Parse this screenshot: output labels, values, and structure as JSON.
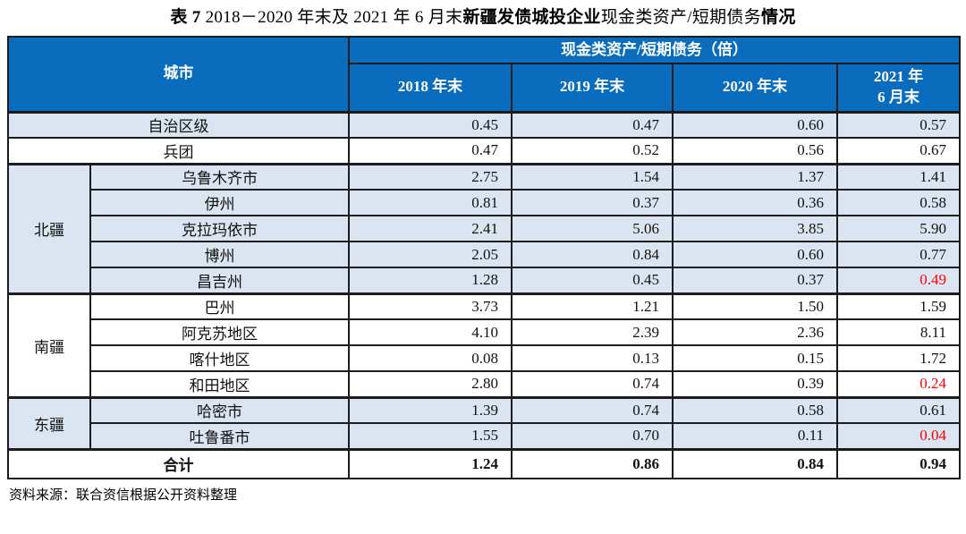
{
  "title": {
    "seg_table_no": "表 7 ",
    "seg_period": "2018－2020 年末及 2021 年 6 月末",
    "seg_subject_bold": "新疆发债城投企业",
    "seg_metric": "现金类资产/短期债务",
    "seg_suffix_bold": "情况"
  },
  "table": {
    "header": {
      "city_label": "城市",
      "metric_group_label": "现金类资产/短期债务（倍）",
      "columns": [
        "2018 年末",
        "2019 年末",
        "2020 年末",
        "2021 年\n6 月末"
      ]
    },
    "rows": [
      {
        "region": "",
        "city": "自治区级",
        "values": [
          "0.45",
          "0.47",
          "0.60",
          "0.57"
        ]
      },
      {
        "region": "",
        "city": "兵团",
        "values": [
          "0.47",
          "0.52",
          "0.56",
          "0.67"
        ]
      },
      {
        "region": "北疆",
        "region_rowspan": 5,
        "city": "乌鲁木齐市",
        "values": [
          "2.75",
          "1.54",
          "1.37",
          "1.41"
        ]
      },
      {
        "city": "伊州",
        "values": [
          "0.81",
          "0.37",
          "0.36",
          "0.58"
        ]
      },
      {
        "city": "克拉玛依市",
        "values": [
          "2.41",
          "5.06",
          "3.85",
          "5.90"
        ]
      },
      {
        "city": "博州",
        "values": [
          "2.05",
          "0.84",
          "0.60",
          "0.77"
        ]
      },
      {
        "city": "昌吉州",
        "values": [
          "1.28",
          "0.45",
          "0.37",
          "0.49"
        ],
        "red_2021": true
      },
      {
        "region": "南疆",
        "region_rowspan": 4,
        "city": "巴州",
        "values": [
          "3.73",
          "1.21",
          "1.50",
          "1.59"
        ]
      },
      {
        "city": "阿克苏地区",
        "values": [
          "4.10",
          "2.39",
          "2.36",
          "8.11"
        ]
      },
      {
        "city": "喀什地区",
        "values": [
          "0.08",
          "0.13",
          "0.15",
          "1.72"
        ]
      },
      {
        "city": "和田地区",
        "values": [
          "2.80",
          "0.74",
          "0.39",
          "0.24"
        ],
        "red_2021": true
      },
      {
        "region": "东疆",
        "region_rowspan": 2,
        "city": "哈密市",
        "values": [
          "1.39",
          "0.74",
          "0.58",
          "0.61"
        ]
      },
      {
        "city": "吐鲁番市",
        "values": [
          "1.55",
          "0.70",
          "0.11",
          "0.04"
        ],
        "red_2021": true
      }
    ],
    "total_row": {
      "label": "合计",
      "values": [
        "1.24",
        "0.86",
        "0.84",
        "0.94"
      ]
    }
  },
  "footer": {
    "source": "资料来源：联合资信根据公开资料整理"
  },
  "colors": {
    "header_bg": "#0a6cbd",
    "header_text": "#ffffff",
    "shaded_row_bg": "#dbe5f1",
    "highlight_red": "#fe0000",
    "border": "#1c1c1c"
  }
}
